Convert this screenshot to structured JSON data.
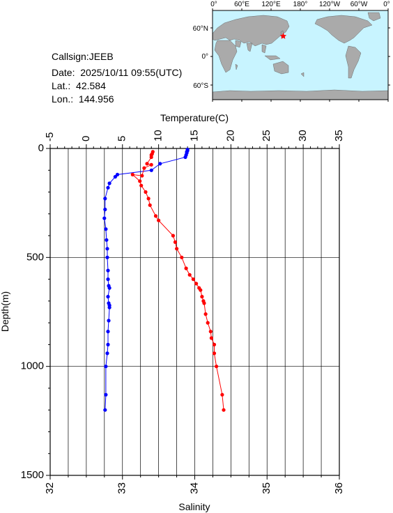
{
  "info": {
    "callsign": "Callsign:JEEB",
    "date_label": "Date:",
    "date_value": "2025/10/11 09:55(UTC)",
    "lat_label": "Lat.:",
    "lat_value": "42.584",
    "lon_label": "Lon.:",
    "lon_value": "144.956"
  },
  "map": {
    "top_labels": [
      "0°",
      "60°E",
      "120°E",
      "180°",
      "120°W",
      "60°W",
      "0°"
    ],
    "side_labels": [
      "60°N",
      "0°",
      "60°S"
    ],
    "ocean_color": "#c8f4ff",
    "land_color": "#aaaaaa",
    "marker_color": "#ff0000",
    "marker_lon": 144.956,
    "marker_lat": 42.584
  },
  "chart_data": {
    "type": "scatter",
    "title": "",
    "temperature_axis": {
      "label": "Temperature(C)",
      "range": [
        -5,
        35
      ],
      "ticks": [
        "-5",
        "0",
        "5",
        "10",
        "15",
        "20",
        "25",
        "30",
        "35"
      ]
    },
    "salinity_axis": {
      "label": "Salinity",
      "range": [
        32,
        36
      ],
      "ticks": [
        "32",
        "33",
        "34",
        "35",
        "36"
      ]
    },
    "depth_axis": {
      "label": "Depth(m)",
      "range": [
        0,
        1500
      ],
      "inverted": true,
      "ticks": [
        "0",
        "500",
        "1000",
        "1500"
      ]
    },
    "grid": true,
    "series": [
      {
        "quantity": "temperature",
        "color": "#0000ff",
        "points": [
          [
            14.0,
            5
          ],
          [
            14.0,
            10
          ],
          [
            13.9,
            15
          ],
          [
            13.9,
            20
          ],
          [
            13.8,
            30
          ],
          [
            13.7,
            40
          ],
          [
            10.2,
            70
          ],
          [
            9.0,
            100
          ],
          [
            4.3,
            120
          ],
          [
            4.0,
            130
          ],
          [
            3.2,
            160
          ],
          [
            3.0,
            180
          ],
          [
            2.6,
            230
          ],
          [
            2.6,
            280
          ],
          [
            2.5,
            320
          ],
          [
            2.7,
            370
          ],
          [
            2.8,
            420
          ],
          [
            2.9,
            460
          ],
          [
            2.9,
            500
          ],
          [
            3.0,
            560
          ],
          [
            3.0,
            600
          ],
          [
            3.1,
            630
          ],
          [
            3.2,
            640
          ],
          [
            3.0,
            680
          ],
          [
            3.1,
            710
          ],
          [
            3.2,
            720
          ],
          [
            3.2,
            730
          ],
          [
            3.1,
            790
          ],
          [
            3.0,
            840
          ],
          [
            3.0,
            900
          ],
          [
            2.9,
            940
          ],
          [
            2.7,
            1000
          ],
          [
            2.7,
            1130
          ],
          [
            2.6,
            1200
          ]
        ]
      },
      {
        "quantity": "salinity",
        "color": "#ff0000",
        "points": [
          [
            33.42,
            15
          ],
          [
            33.41,
            25
          ],
          [
            33.4,
            30
          ],
          [
            33.4,
            40
          ],
          [
            33.34,
            70
          ],
          [
            33.4,
            75
          ],
          [
            33.3,
            90
          ],
          [
            33.27,
            125
          ],
          [
            33.14,
            120
          ],
          [
            33.24,
            150
          ],
          [
            33.26,
            170
          ],
          [
            33.32,
            200
          ],
          [
            33.36,
            230
          ],
          [
            33.38,
            260
          ],
          [
            33.46,
            310
          ],
          [
            33.5,
            330
          ],
          [
            33.7,
            400
          ],
          [
            33.73,
            430
          ],
          [
            33.75,
            460
          ],
          [
            33.82,
            500
          ],
          [
            33.88,
            550
          ],
          [
            33.93,
            580
          ],
          [
            33.98,
            600
          ],
          [
            34.02,
            620
          ],
          [
            34.06,
            640
          ],
          [
            34.08,
            650
          ],
          [
            34.1,
            680
          ],
          [
            34.12,
            700
          ],
          [
            34.13,
            710
          ],
          [
            34.15,
            760
          ],
          [
            34.18,
            800
          ],
          [
            34.22,
            840
          ],
          [
            34.23,
            870
          ],
          [
            34.27,
            900
          ],
          [
            34.27,
            940
          ],
          [
            34.3,
            1000
          ],
          [
            34.38,
            1130
          ],
          [
            34.4,
            1200
          ]
        ]
      }
    ]
  }
}
